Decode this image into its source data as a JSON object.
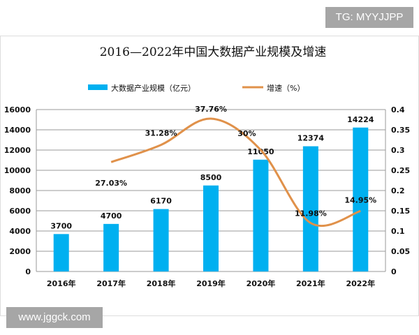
{
  "watermark_top": "TG: MYYJJPP",
  "watermark_bottom": "www.jggck.com",
  "chart_data": {
    "type": "bar+line",
    "title": "2016—2022年中国大数据产业规模及增速",
    "categories": [
      "2016年",
      "2017年",
      "2018年",
      "2019年",
      "2020年",
      "2021年",
      "2022年"
    ],
    "series": [
      {
        "name": "大数据产业规模（亿元）",
        "type": "bar",
        "axis": "left",
        "color": "#00b0f0",
        "values": [
          3700,
          4700,
          6170,
          8500,
          11050,
          12374,
          14224
        ],
        "labels": [
          "3700",
          "4700",
          "6170",
          "8500",
          "11050",
          "12374",
          "14224"
        ]
      },
      {
        "name": "增速（%）",
        "type": "line",
        "axis": "right",
        "color": "#e0914a",
        "values": [
          null,
          0.2703,
          0.3128,
          0.3776,
          0.3,
          0.1198,
          0.1495
        ],
        "labels": [
          "",
          "27.03%",
          "31.28%",
          "37.76%",
          "30%",
          "11.98%",
          "14.95%"
        ]
      }
    ],
    "y_left": {
      "range": [
        0,
        16000
      ],
      "ticks": [
        "0",
        "2000",
        "4000",
        "6000",
        "8000",
        "10000",
        "12000",
        "14000",
        "16000"
      ]
    },
    "y_right": {
      "range": [
        0,
        0.4
      ],
      "ticks": [
        "0",
        "0.05",
        "0.1",
        "0.15",
        "0.2",
        "0.25",
        "0.3",
        "0.35",
        "0.4"
      ]
    },
    "grid": true,
    "legend": "top"
  }
}
